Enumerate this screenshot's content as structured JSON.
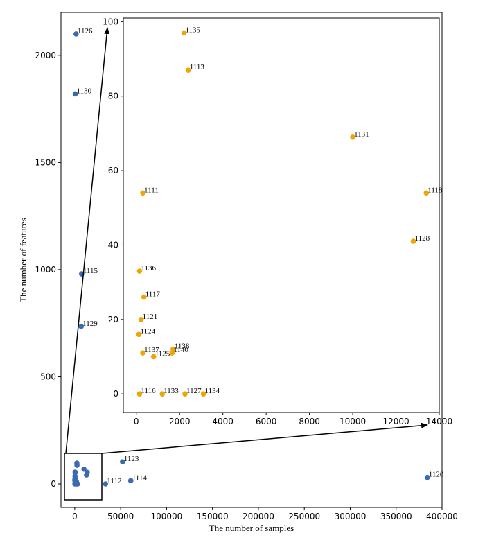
{
  "chart_data": [
    {
      "type": "scatter",
      "xlabel": "The number of samples",
      "ylabel": "The number of features",
      "xlim": [
        -15000,
        400000
      ],
      "ylim": [
        -110,
        2200
      ],
      "xticks": [
        "0",
        "50000",
        "100000",
        "150000",
        "200000",
        "250000",
        "300000",
        "350000",
        "400000"
      ],
      "yticks": [
        "0",
        "500",
        "1000",
        "1500",
        "2000"
      ],
      "color": "#3a6ab4",
      "points": [
        {
          "id": "1126",
          "x": 1500,
          "y": 2100
        },
        {
          "id": "1130",
          "x": 500,
          "y": 1820
        },
        {
          "id": "1115",
          "x": 7500,
          "y": 980
        },
        {
          "id": "1129",
          "x": 7000,
          "y": 735
        },
        {
          "id": "1123",
          "x": 52000,
          "y": 103
        },
        {
          "id": "1114",
          "x": 61000,
          "y": 15
        },
        {
          "id": "1112",
          "x": 33500,
          "y": 0
        },
        {
          "id": "1120",
          "x": 384000,
          "y": 30
        },
        {
          "id": "",
          "x": 2300,
          "y": 97
        },
        {
          "id": "",
          "x": 2400,
          "y": 87
        },
        {
          "id": "",
          "x": 10000,
          "y": 69
        },
        {
          "id": "",
          "x": 13500,
          "y": 54
        },
        {
          "id": "",
          "x": 12800,
          "y": 42
        },
        {
          "id": "",
          "x": 400,
          "y": 55
        },
        {
          "id": "",
          "x": 300,
          "y": 36
        },
        {
          "id": "",
          "x": 350,
          "y": 27
        },
        {
          "id": "",
          "x": 150,
          "y": 20
        },
        {
          "id": "",
          "x": 120,
          "y": 16
        },
        {
          "id": "",
          "x": 350,
          "y": 11
        },
        {
          "id": "",
          "x": 800,
          "y": 10
        },
        {
          "id": "",
          "x": 1700,
          "y": 11
        },
        {
          "id": "",
          "x": 1600,
          "y": 12
        },
        {
          "id": "",
          "x": 150,
          "y": 0
        },
        {
          "id": "",
          "x": 1200,
          "y": 0
        },
        {
          "id": "",
          "x": 2300,
          "y": 0
        },
        {
          "id": "",
          "x": 3100,
          "y": 0
        }
      ]
    },
    {
      "type": "scatter",
      "xlim": [
        -600,
        14000
      ],
      "ylim": [
        -5,
        101
      ],
      "xticks": [
        "0",
        "2000",
        "4000",
        "6000",
        "8000",
        "10000",
        "12000",
        "14000"
      ],
      "yticks": [
        "0",
        "20",
        "40",
        "60",
        "80",
        "100"
      ],
      "color": "#f0a500",
      "points": [
        {
          "id": "1135",
          "x": 2200,
          "y": 97
        },
        {
          "id": "1113",
          "x": 2400,
          "y": 87
        },
        {
          "id": "1131",
          "x": 10000,
          "y": 69
        },
        {
          "id": "1111",
          "x": 300,
          "y": 54
        },
        {
          "id": "1118",
          "x": 13400,
          "y": 54
        },
        {
          "id": "1128",
          "x": 12800,
          "y": 41
        },
        {
          "id": "1136",
          "x": 150,
          "y": 33
        },
        {
          "id": "1117",
          "x": 350,
          "y": 26
        },
        {
          "id": "1121",
          "x": 220,
          "y": 20
        },
        {
          "id": "1124",
          "x": 120,
          "y": 16
        },
        {
          "id": "1137",
          "x": 300,
          "y": 11
        },
        {
          "id": "1125",
          "x": 800,
          "y": 10
        },
        {
          "id": "1138",
          "x": 1700,
          "y": 12
        },
        {
          "id": "1140",
          "x": 1650,
          "y": 11
        },
        {
          "id": "1116",
          "x": 150,
          "y": 0
        },
        {
          "id": "1133",
          "x": 1200,
          "y": 0
        },
        {
          "id": "1127",
          "x": 2250,
          "y": 0
        },
        {
          "id": "1134",
          "x": 3100,
          "y": 0
        }
      ]
    }
  ]
}
